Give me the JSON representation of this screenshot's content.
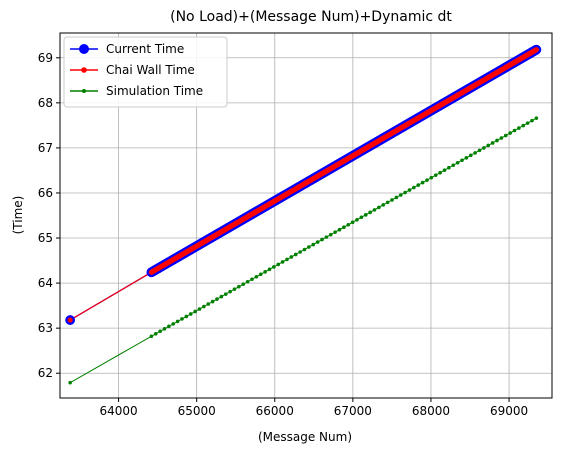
{
  "chart_data": {
    "type": "line",
    "title": "(No Load)+(Message Num)+Dynamic dt",
    "xlabel": "(Message Num)",
    "ylabel": "(Time)",
    "xlim": [
      63250,
      69550
    ],
    "ylim": [
      61.45,
      69.55
    ],
    "xticks": [
      64000,
      65000,
      66000,
      67000,
      68000,
      69000
    ],
    "yticks": [
      62,
      63,
      64,
      65,
      66,
      67,
      68,
      69
    ],
    "grid": true,
    "legend_position": "top-left",
    "series": [
      {
        "name": "Current Time",
        "color": "#0000ff",
        "marker": "circle",
        "marker_size": "large",
        "points": [
          [
            63380,
            63.18
          ],
          [
            64420,
            64.24
          ],
          [
            69350,
            69.18
          ]
        ]
      },
      {
        "name": "Chai Wall Time",
        "color": "#ff0000",
        "marker": "circle",
        "marker_size": "small",
        "points": [
          [
            63380,
            63.18
          ],
          [
            64420,
            64.24
          ],
          [
            69350,
            69.18
          ]
        ]
      },
      {
        "name": "Simulation Time",
        "color": "#008000",
        "marker": "circle",
        "marker_size": "tiny",
        "points": [
          [
            63380,
            61.79
          ],
          [
            64420,
            62.82
          ],
          [
            69350,
            67.66
          ]
        ]
      }
    ]
  }
}
